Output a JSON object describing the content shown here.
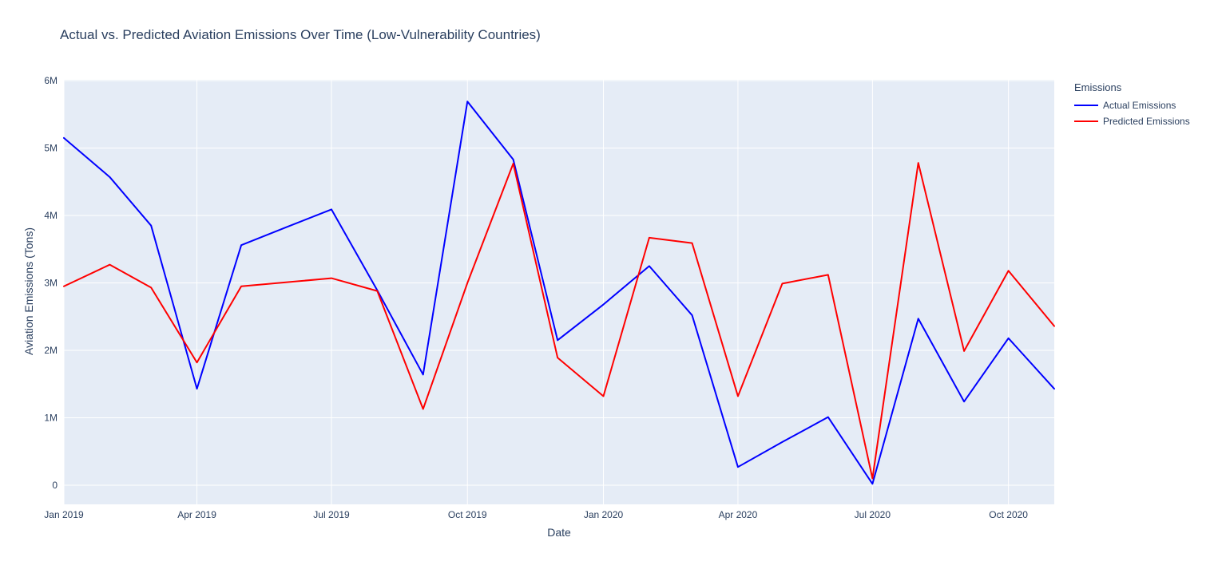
{
  "colors": {
    "plot_background": "#e5ecf6",
    "gridline": "#ffffff",
    "text": "#2a3f5f",
    "actual": "#0000ff",
    "predicted": "#ff0000"
  },
  "legend": {
    "title": "Emissions",
    "items": [
      {
        "label": "Actual Emissions",
        "color": "#0000ff"
      },
      {
        "label": "Predicted Emissions",
        "color": "#ff0000"
      }
    ]
  },
  "chart_data": {
    "type": "line",
    "title": "Actual vs. Predicted Aviation Emissions Over Time (Low-Vulnerability Countries)",
    "xlabel": "Date",
    "ylabel": "Aviation Emissions (Tons)",
    "grid": true,
    "legend_position": "right",
    "ylim": [
      0,
      6000000
    ],
    "y_tick_step": 1000000,
    "yticks": [
      "0",
      "1M",
      "2M",
      "3M",
      "4M",
      "5M",
      "6M"
    ],
    "xticks": [
      {
        "date": "2019-01-01",
        "label": "Jan 2019"
      },
      {
        "date": "2019-04-01",
        "label": "Apr 2019"
      },
      {
        "date": "2019-07-01",
        "label": "Jul 2019"
      },
      {
        "date": "2019-10-01",
        "label": "Oct 2019"
      },
      {
        "date": "2020-01-01",
        "label": "Jan 2020"
      },
      {
        "date": "2020-04-01",
        "label": "Apr 2020"
      },
      {
        "date": "2020-07-01",
        "label": "Jul 2020"
      },
      {
        "date": "2020-10-01",
        "label": "Oct 2020"
      }
    ],
    "x": [
      "2019-01-01",
      "2019-02-01",
      "2019-03-01",
      "2019-04-01",
      "2019-05-01",
      "2019-06-01",
      "2019-07-01",
      "2019-08-01",
      "2019-09-01",
      "2019-10-01",
      "2019-11-01",
      "2019-12-01",
      "2020-01-01",
      "2020-02-01",
      "2020-03-01",
      "2020-04-01",
      "2020-05-01",
      "2020-06-01",
      "2020-07-01",
      "2020-08-01",
      "2020-09-01",
      "2020-10-01",
      "2020-11-01"
    ],
    "series": [
      {
        "name": "Actual Emissions",
        "color": "#0000ff",
        "values": [
          5150000,
          4570000,
          3850000,
          1430000,
          3560000,
          3830000,
          4090000,
          2890000,
          1640000,
          5690000,
          4830000,
          2150000,
          2680000,
          3250000,
          2520000,
          270000,
          640000,
          1010000,
          20000,
          2470000,
          1240000,
          2180000,
          1430000
        ]
      },
      {
        "name": "Predicted Emissions",
        "color": "#ff0000",
        "values": [
          2950000,
          3270000,
          2930000,
          1820000,
          2950000,
          3010000,
          3070000,
          2880000,
          1130000,
          3000000,
          4770000,
          1890000,
          1320000,
          3670000,
          3590000,
          1320000,
          2990000,
          3120000,
          100000,
          4780000,
          1990000,
          3180000,
          2360000
        ]
      }
    ]
  }
}
